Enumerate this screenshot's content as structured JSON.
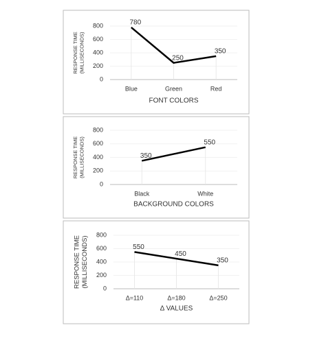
{
  "chart_data": [
    {
      "type": "line",
      "categories": [
        "Blue",
        "Green",
        "Red"
      ],
      "values": [
        780,
        250,
        350
      ],
      "color": "#000000",
      "ylim": [
        0,
        800
      ],
      "yticks": [
        0,
        200,
        400,
        600,
        800
      ],
      "grid": true,
      "y_label": [
        "RESPONSE TIME",
        "(MILLISECONDS)"
      ],
      "x_label": "FONT COLORS"
    },
    {
      "type": "line",
      "categories": [
        "Black",
        "White"
      ],
      "values": [
        350,
        550
      ],
      "color": "#000000",
      "ylim": [
        0,
        800
      ],
      "yticks": [
        0,
        200,
        400,
        600,
        800
      ],
      "grid": true,
      "y_label": [
        "RESPONSE TIME",
        "(MILLISECONDS)"
      ],
      "x_label": "BACKGROUND COLORS"
    },
    {
      "type": "line",
      "categories": [
        "Δ=110",
        "Δ=180",
        "Δ=250"
      ],
      "values": [
        550,
        450,
        350
      ],
      "color": "#000000",
      "ylim": [
        0,
        800
      ],
      "yticks": [
        0,
        200,
        400,
        600,
        800
      ],
      "grid": true,
      "y_label": [
        "RESPONSE TIME",
        "(MILLISECONDS)"
      ],
      "x_label": "Δ VALUES"
    }
  ]
}
